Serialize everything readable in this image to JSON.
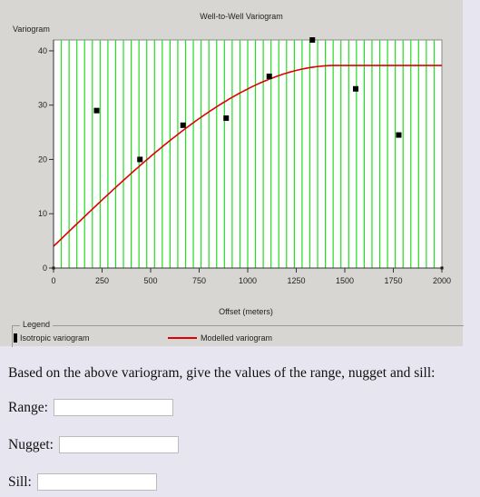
{
  "chart_data": {
    "type": "scatter",
    "title": "Well-to-Well Variogram",
    "ylabel": "Variogram",
    "xlabel": "Offset (meters)",
    "xlim": [
      0,
      2000
    ],
    "ylim": [
      0,
      42
    ],
    "x_ticks": [
      0,
      250,
      500,
      750,
      1000,
      1250,
      1500,
      1750,
      2000
    ],
    "y_ticks": [
      0,
      10,
      20,
      30,
      40
    ],
    "grid": true,
    "grid_color": "#22dd22",
    "series": [
      {
        "name": "Isotropic variogram",
        "kind": "points",
        "color": "#000000",
        "points": [
          {
            "x": 0,
            "y": 0
          },
          {
            "x": 222,
            "y": 29
          },
          {
            "x": 445,
            "y": 20
          },
          {
            "x": 667,
            "y": 26.3
          },
          {
            "x": 889,
            "y": 27.6
          },
          {
            "x": 1111,
            "y": 35.3
          },
          {
            "x": 1333,
            "y": 42
          },
          {
            "x": 1556,
            "y": 33
          },
          {
            "x": 1778,
            "y": 24.5
          },
          {
            "x": 2000,
            "y": 0
          }
        ]
      },
      {
        "name": "Modelled variogram",
        "kind": "line",
        "color": "#e00000",
        "model": "spherical",
        "nugget": 4,
        "sill": 37.3,
        "range": 1450
      }
    ],
    "legend": {
      "title": "Legend",
      "placement": "bottom",
      "entries": [
        "Isotropic variogram",
        "Modelled variogram"
      ]
    }
  },
  "question": {
    "prompt": "Based on the above variogram, give the values of the range, nugget and sill:",
    "fields": [
      {
        "label": "Range:",
        "value": "",
        "placeholder": ""
      },
      {
        "label": "Nugget:",
        "value": "",
        "placeholder": ""
      },
      {
        "label": "Sill:",
        "value": "",
        "placeholder": ""
      }
    ]
  }
}
